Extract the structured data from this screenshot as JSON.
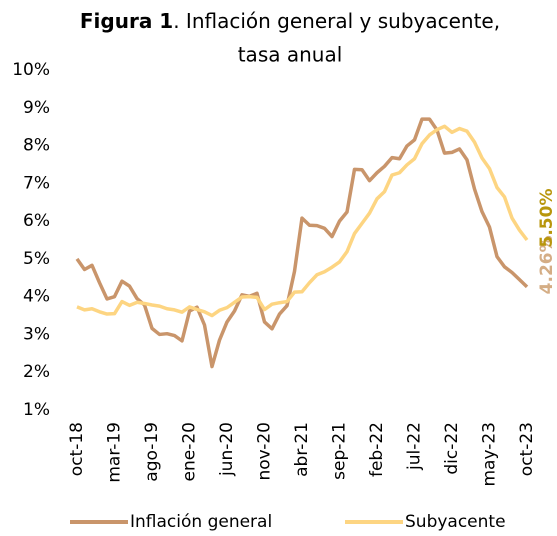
{
  "chart_data": {
    "type": "line",
    "title_bold": "Figura 1",
    "title": [
      ". Inflación general y subyacente,",
      "tasa anual"
    ],
    "categories": [
      "oct-18",
      null,
      null,
      null,
      null,
      "mar-19",
      null,
      null,
      null,
      null,
      "ago-19",
      null,
      null,
      null,
      null,
      "ene-20",
      null,
      null,
      null,
      null,
      "jun-20",
      null,
      null,
      null,
      null,
      "nov-20",
      null,
      null,
      null,
      null,
      "abr-21",
      null,
      null,
      null,
      null,
      "sep-21",
      null,
      null,
      null,
      null,
      "feb-22",
      null,
      null,
      null,
      null,
      "jul-22",
      null,
      null,
      null,
      null,
      "dic-22",
      null,
      null,
      null,
      null,
      "may-23",
      null,
      null,
      null,
      null,
      "oct-23"
    ],
    "series": [
      {
        "name": "Inflación general",
        "color": "#c9956b",
        "label_color": "#d4ad85",
        "values": [
          5.0,
          4.72,
          4.83,
          4.37,
          3.94,
          4.0,
          4.41,
          4.28,
          3.95,
          3.78,
          3.16,
          3.0,
          3.02,
          2.97,
          2.83,
          3.62,
          3.72,
          3.25,
          2.15,
          2.85,
          3.33,
          3.62,
          4.05,
          4.01,
          4.09,
          3.33,
          3.15,
          3.54,
          3.76,
          4.67,
          6.08,
          5.89,
          5.88,
          5.81,
          5.59,
          6.0,
          6.24,
          7.37,
          7.36,
          7.07,
          7.28,
          7.45,
          7.68,
          7.65,
          7.99,
          8.15,
          8.7,
          8.7,
          8.41,
          7.8,
          7.82,
          7.91,
          7.62,
          6.85,
          6.25,
          5.84,
          5.06,
          4.79,
          4.64,
          4.45,
          4.26
        ],
        "value_labels": [
          null,
          null,
          null,
          null,
          null,
          null,
          null,
          null,
          null,
          null,
          null,
          null,
          null,
          null,
          null,
          null,
          null,
          null,
          null,
          null,
          null,
          null,
          null,
          null,
          null,
          null,
          null,
          null,
          null,
          null,
          null,
          null,
          null,
          null,
          null,
          null,
          null,
          null,
          null,
          null,
          null,
          null,
          null,
          null,
          null,
          null,
          null,
          null,
          null,
          null,
          null,
          null,
          null,
          null,
          null,
          null,
          null,
          null,
          null,
          null,
          "4.26%"
        ]
      },
      {
        "name": "Subyacente",
        "color": "#fdd582",
        "label_color": "#b8960c",
        "values": [
          3.73,
          3.65,
          3.68,
          3.6,
          3.54,
          3.55,
          3.87,
          3.77,
          3.85,
          3.82,
          3.78,
          3.75,
          3.68,
          3.65,
          3.59,
          3.73,
          3.66,
          3.6,
          3.5,
          3.64,
          3.71,
          3.85,
          3.99,
          4.0,
          3.98,
          3.66,
          3.8,
          3.84,
          3.87,
          4.12,
          4.13,
          4.37,
          4.58,
          4.66,
          4.78,
          4.92,
          5.19,
          5.67,
          5.94,
          6.21,
          6.59,
          6.78,
          7.22,
          7.28,
          7.49,
          7.65,
          8.05,
          8.28,
          8.42,
          8.51,
          8.35,
          8.45,
          8.38,
          8.09,
          7.67,
          7.39,
          6.89,
          6.64,
          6.08,
          5.76,
          5.5
        ],
        "value_labels": [
          null,
          null,
          null,
          null,
          null,
          null,
          null,
          null,
          null,
          null,
          null,
          null,
          null,
          null,
          null,
          null,
          null,
          null,
          null,
          null,
          null,
          null,
          null,
          null,
          null,
          null,
          null,
          null,
          null,
          null,
          null,
          null,
          null,
          null,
          null,
          null,
          null,
          null,
          null,
          null,
          null,
          null,
          null,
          null,
          null,
          null,
          null,
          null,
          null,
          null,
          null,
          null,
          null,
          null,
          null,
          null,
          null,
          null,
          null,
          null,
          "5.50%"
        ]
      }
    ],
    "ylim": [
      1,
      10
    ],
    "yticks": [
      {
        "value": 1,
        "label": "1%"
      },
      {
        "value": 2,
        "label": "2%"
      },
      {
        "value": 3,
        "label": "3%"
      },
      {
        "value": 4,
        "label": "4%"
      },
      {
        "value": 5,
        "label": "5%"
      },
      {
        "value": 6,
        "label": "6%"
      },
      {
        "value": 7,
        "label": "7%"
      },
      {
        "value": 8,
        "label": "8%"
      },
      {
        "value": 9,
        "label": "9%"
      },
      {
        "value": 10,
        "label": "10%"
      }
    ],
    "grid": false,
    "legend": "bottom"
  }
}
